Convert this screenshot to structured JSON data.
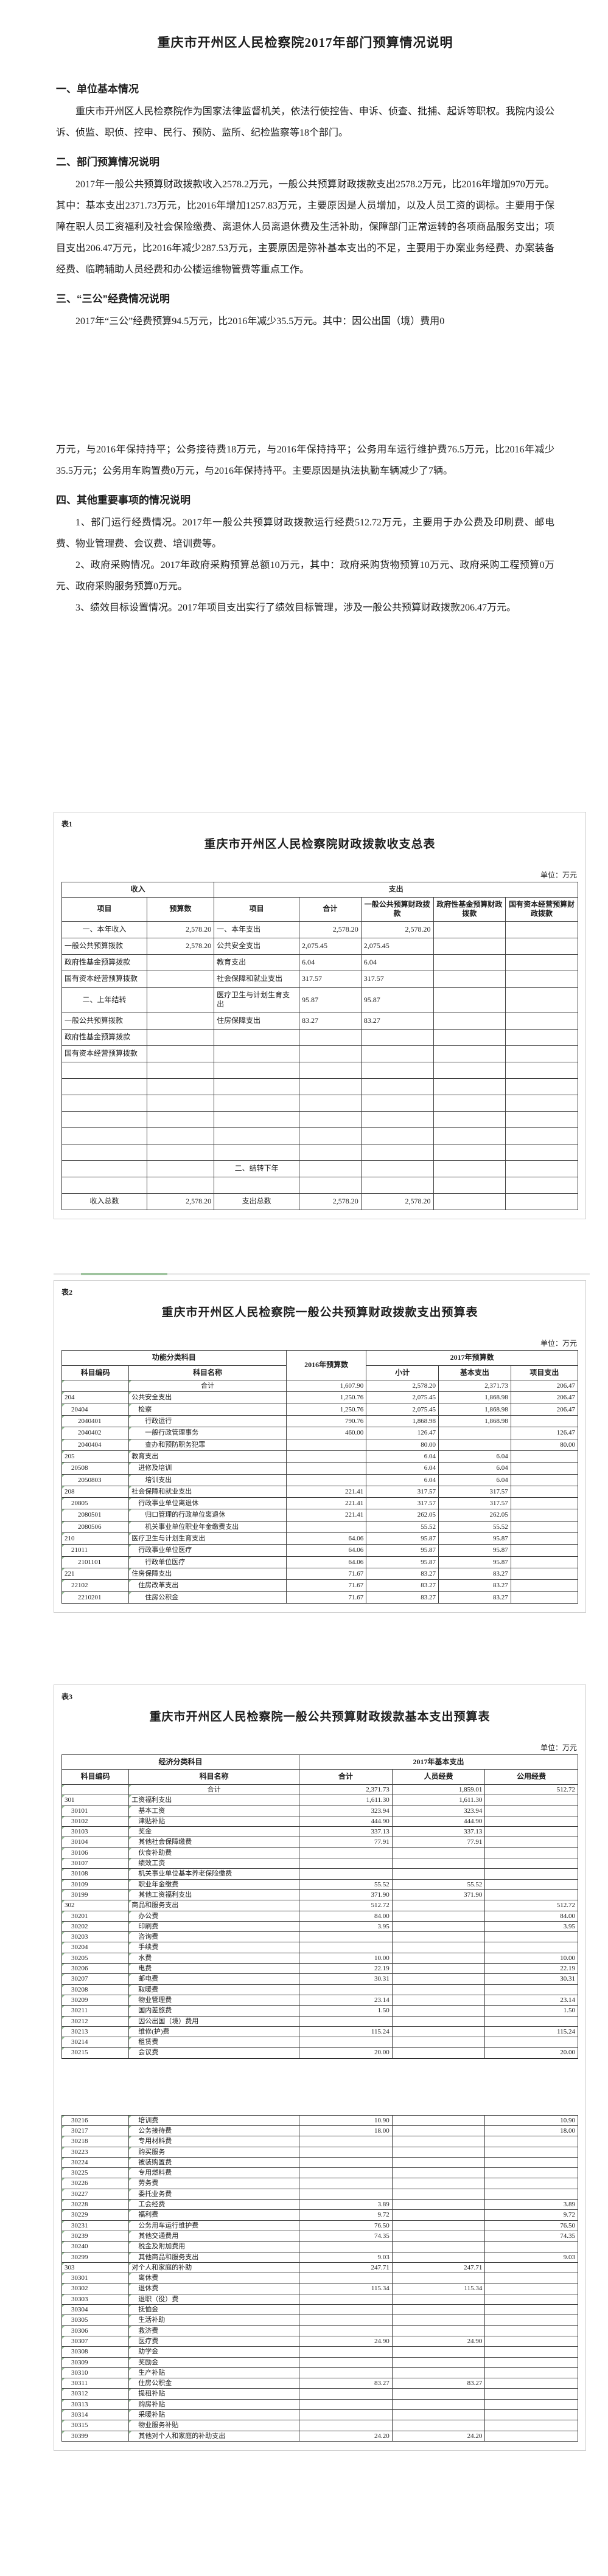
{
  "decor": {
    "divider_green": "#9fc49f",
    "divider_grey": "#ececec",
    "cell_mark_green": "#8fbc8f",
    "grid_border": "#3f3f3f"
  },
  "doc": {
    "title": "重庆市开州区人民检察院2017年部门预算情况说明",
    "s1_heading": "一、单位基本情况",
    "s1_p1": "重庆市开州区人民检察院作为国家法律监督机关，依法行使控告、申诉、侦查、批捕、起诉等职权。我院内设公诉、侦监、职侦、控申、民行、预防、监所、纪检监察等18个部门。",
    "s2_heading": "二、部门预算情况说明",
    "s2_p1": "2017年一般公共预算财政拨款收入2578.2万元，一般公共预算财政拨款支出2578.2万元，比2016年增加970万元。其中：基本支出2371.73万元，比2016年增加1257.83万元，主要原因是人员增加，以及人员工资的调标。主要用于保障在职人员工资福利及社会保险缴费、离退休人员离退休费及生活补助，保障部门正常运转的各项商品服务支出；项目支出206.47万元，比2016年减少287.53万元，主要原因是弥补基本支出的不足，主要用于办案业务经费、办案装备经费、临聘辅助人员经费和办公楼运维物管费等重点工作。",
    "s3_heading": "三、“三公”经费情况说明",
    "s3_p1": "2017年“三公”经费预算94.5万元，比2016年减少35.5万元。其中：因公出国（境）费用0",
    "s3_p2": "万元，与2016年保持持平；公务接待费18万元，与2016年保持持平；公务用车运行维护费76.5万元，比2016年减少35.5万元；公务用车购置费0万元，与2016年保持持平。主要原因是执法执勤车辆减少了7辆。",
    "s4_heading": "四、其他重要事项的情况说明",
    "s4_p1": "1、部门运行经费情况。2017年一般公共预算财政拨款运行经费512.72万元，主要用于办公费及印刷费、邮电费、物业管理费、会议费、培训费等。",
    "s4_p2": "2、政府采购情况。2017年政府采购预算总额10万元，其中：政府采购货物预算10万元、政府采购工程预算0万元、政府采购服务预算0万元。",
    "s4_p3": "3、绩效目标设置情况。2017年项目支出实行了绩效目标管理，涉及一般公共预算财政拨款206.47万元。"
  },
  "table1": {
    "tag": "表1",
    "title": "重庆市开州区人民检察院财政拨款收支总表",
    "unit": "单位：万元",
    "header": {
      "income": "收入",
      "expense": "支出",
      "item": "项目",
      "budget": "预算数",
      "total": "合计",
      "col_general": "一般公共预算财政拨款",
      "col_fund": "政府性基金预算财政拨款",
      "col_capital": "国有资本经营预算财政拨款"
    },
    "rows": [
      [
        "一、本年收入",
        "2,578.20",
        "一、本年支出",
        "2,578.20",
        "2,578.20",
        "",
        ""
      ],
      [
        "一般公共预算拨款",
        "2,578.20",
        "公共安全支出",
        "2,075.45",
        "2,075.45",
        "",
        ""
      ],
      [
        "政府性基金预算拨款",
        "",
        "教育支出",
        "6.04",
        "6.04",
        "",
        ""
      ],
      [
        "国有资本经营预算拨款",
        "",
        "社会保障和就业支出",
        "317.57",
        "317.57",
        "",
        ""
      ],
      [
        "二、上年结转",
        "",
        "医疗卫生与计划生育支出",
        "95.87",
        "95.87",
        "",
        ""
      ],
      [
        "一般公共预算拨款",
        "",
        "住房保障支出",
        "83.27",
        "83.27",
        "",
        ""
      ],
      [
        "政府性基金预算拨款",
        "",
        "",
        "",
        "",
        "",
        ""
      ],
      [
        "国有资本经营预算拨款",
        "",
        "",
        "",
        "",
        "",
        ""
      ],
      [
        "",
        "",
        "",
        "",
        "",
        "",
        ""
      ],
      [
        "",
        "",
        "",
        "",
        "",
        "",
        ""
      ],
      [
        "",
        "",
        "",
        "",
        "",
        "",
        ""
      ],
      [
        "",
        "",
        "",
        "",
        "",
        "",
        ""
      ],
      [
        "",
        "",
        "",
        "",
        "",
        "",
        ""
      ],
      [
        "",
        "",
        "",
        "",
        "",
        "",
        ""
      ],
      [
        "",
        "",
        "二、结转下年",
        "",
        "",
        "",
        ""
      ],
      [
        "",
        "",
        "",
        "",
        "",
        "",
        ""
      ],
      [
        "收入总数",
        "2,578.20",
        "支出总数",
        "2,578.20",
        "2,578.20",
        "",
        ""
      ]
    ]
  },
  "table2": {
    "tag": "表2",
    "title": "重庆市开州区人民检察院一般公共预算财政拨款支出预算表",
    "unit": "单位：万元",
    "header": {
      "func": "功能分类科目",
      "code": "科目编码",
      "name": "科目名称",
      "y2016": "2016年预算数",
      "y2017": "2017年预算数",
      "subtotal": "小计",
      "basic": "基本支出",
      "project": "项目支出"
    },
    "rows": [
      [
        "",
        "合计",
        "1,607.90",
        "2,578.20",
        "2,371.73",
        "206.47"
      ],
      [
        "204",
        "公共安全支出",
        "1,250.76",
        "2,075.45",
        "1,868.98",
        "206.47"
      ],
      [
        "　20404",
        "　检察",
        "1,250.76",
        "2,075.45",
        "1,868.98",
        "206.47"
      ],
      [
        "　　2040401",
        "　　行政运行",
        "790.76",
        "1,868.98",
        "1,868.98",
        ""
      ],
      [
        "　　2040402",
        "　　一般行政管理事务",
        "460.00",
        "126.47",
        "",
        "126.47"
      ],
      [
        "　　2040404",
        "　　查办和预防职务犯罪",
        "",
        "80.00",
        "",
        "80.00"
      ],
      [
        "205",
        "教育支出",
        "",
        "6.04",
        "6.04",
        ""
      ],
      [
        "　20508",
        "　进修及培训",
        "",
        "6.04",
        "6.04",
        ""
      ],
      [
        "　　2050803",
        "　　培训支出",
        "",
        "6.04",
        "6.04",
        ""
      ],
      [
        "208",
        "社会保障和就业支出",
        "221.41",
        "317.57",
        "317.57",
        ""
      ],
      [
        "　20805",
        "　行政事业单位离退休",
        "221.41",
        "317.57",
        "317.57",
        ""
      ],
      [
        "　　2080501",
        "　　归口管理的行政单位离退休",
        "221.41",
        "262.05",
        "262.05",
        ""
      ],
      [
        "　　2080506",
        "　　机关事业单位职业年金缴费支出",
        "",
        "55.52",
        "55.52",
        ""
      ],
      [
        "210",
        "医疗卫生与计划生育支出",
        "64.06",
        "95.87",
        "95.87",
        ""
      ],
      [
        "　21011",
        "　行政事业单位医疗",
        "64.06",
        "95.87",
        "95.87",
        ""
      ],
      [
        "　　2101101",
        "　　行政单位医疗",
        "64.06",
        "95.87",
        "95.87",
        ""
      ],
      [
        "221",
        "住房保障支出",
        "71.67",
        "83.27",
        "83.27",
        ""
      ],
      [
        "　22102",
        "　住房改革支出",
        "71.67",
        "83.27",
        "83.27",
        ""
      ],
      [
        "　　2210201",
        "　　住房公积金",
        "71.67",
        "83.27",
        "83.27",
        ""
      ]
    ]
  },
  "table3": {
    "tag": "表3",
    "title": "重庆市开州区人民检察院一般公共预算财政拨款基本支出预算表",
    "unit": "单位：万元",
    "header": {
      "econ": "经济分类科目",
      "code": "科目编码",
      "name": "科目名称",
      "y2017": "2017年基本支出",
      "total": "合计",
      "personnel": "人员经费",
      "public": "公用经费"
    },
    "rows_part1": [
      [
        "",
        "合计",
        "2,371.73",
        "1,859.01",
        "512.72"
      ],
      [
        "301",
        "工资福利支出",
        "1,611.30",
        "1,611.30",
        ""
      ],
      [
        "　30101",
        "　基本工资",
        "323.94",
        "323.94",
        ""
      ],
      [
        "　30102",
        "　津贴补贴",
        "444.90",
        "444.90",
        ""
      ],
      [
        "　30103",
        "　奖金",
        "337.13",
        "337.13",
        ""
      ],
      [
        "　30104",
        "　其他社会保障缴费",
        "77.91",
        "77.91",
        ""
      ],
      [
        "　30106",
        "　伙食补助费",
        "",
        "",
        ""
      ],
      [
        "　30107",
        "　绩效工资",
        "",
        "",
        ""
      ],
      [
        "　30108",
        "　机关事业单位基本养老保险缴费",
        "",
        "",
        ""
      ],
      [
        "　30109",
        "　职业年金缴费",
        "55.52",
        "55.52",
        ""
      ],
      [
        "　30199",
        "　其他工资福利支出",
        "371.90",
        "371.90",
        ""
      ],
      [
        "302",
        "商品和服务支出",
        "512.72",
        "",
        "512.72"
      ],
      [
        "　30201",
        "　办公费",
        "84.00",
        "",
        "84.00"
      ],
      [
        "　30202",
        "　印刷费",
        "3.95",
        "",
        "3.95"
      ],
      [
        "　30203",
        "　咨询费",
        "",
        "",
        ""
      ],
      [
        "　30204",
        "　手续费",
        "",
        "",
        ""
      ],
      [
        "　30205",
        "　水费",
        "10.00",
        "",
        "10.00"
      ],
      [
        "　30206",
        "　电费",
        "22.19",
        "",
        "22.19"
      ],
      [
        "　30207",
        "　邮电费",
        "30.31",
        "",
        "30.31"
      ],
      [
        "　30208",
        "　取暖费",
        "",
        "",
        ""
      ],
      [
        "　30209",
        "　物业管理费",
        "23.14",
        "",
        "23.14"
      ],
      [
        "　30211",
        "　国内差旅费",
        "1.50",
        "",
        "1.50"
      ],
      [
        "　30212",
        "　因公出国（境）费用",
        "",
        "",
        ""
      ],
      [
        "　30213",
        "　维修(护)费",
        "115.24",
        "",
        "115.24"
      ],
      [
        "　30214",
        "　租赁费",
        "",
        "",
        ""
      ],
      [
        "　30215",
        "　会议费",
        "20.00",
        "",
        "20.00"
      ]
    ],
    "rows_part2": [
      [
        "　30216",
        "　培训费",
        "10.90",
        "",
        "10.90"
      ],
      [
        "　30217",
        "　公务接待费",
        "18.00",
        "",
        "18.00"
      ],
      [
        "　30218",
        "　专用材料费",
        "",
        "",
        ""
      ],
      [
        "　30223",
        "　购买服务",
        "",
        "",
        ""
      ],
      [
        "　30224",
        "　被装购置费",
        "",
        "",
        ""
      ],
      [
        "　30225",
        "　专用燃料费",
        "",
        "",
        ""
      ],
      [
        "　30226",
        "　劳务费",
        "",
        "",
        ""
      ],
      [
        "　30227",
        "　委托业务费",
        "",
        "",
        ""
      ],
      [
        "　30228",
        "　工会经费",
        "3.89",
        "",
        "3.89"
      ],
      [
        "　30229",
        "　福利费",
        "9.72",
        "",
        "9.72"
      ],
      [
        "　30231",
        "　公务用车运行维护费",
        "76.50",
        "",
        "76.50"
      ],
      [
        "　30239",
        "　其他交通费用",
        "74.35",
        "",
        "74.35"
      ],
      [
        "　30240",
        "　税金及附加费用",
        "",
        "",
        ""
      ],
      [
        "　30299",
        "　其他商品和服务支出",
        "9.03",
        "",
        "9.03"
      ],
      [
        "303",
        "对个人和家庭的补助",
        "247.71",
        "247.71",
        ""
      ],
      [
        "　30301",
        "　离休费",
        "",
        "",
        ""
      ],
      [
        "　30302",
        "　退休费",
        "115.34",
        "115.34",
        ""
      ],
      [
        "　30303",
        "　退职（役）费",
        "",
        "",
        ""
      ],
      [
        "　30304",
        "　抚恤金",
        "",
        "",
        ""
      ],
      [
        "　30305",
        "　生活补助",
        "",
        "",
        ""
      ],
      [
        "　30306",
        "　救济费",
        "",
        "",
        ""
      ],
      [
        "　30307",
        "　医疗费",
        "24.90",
        "24.90",
        ""
      ],
      [
        "　30308",
        "　助学金",
        "",
        "",
        ""
      ],
      [
        "　30309",
        "　奖励金",
        "",
        "",
        ""
      ],
      [
        "　30310",
        "　生产补贴",
        "",
        "",
        ""
      ],
      [
        "　30311",
        "　住房公积金",
        "83.27",
        "83.27",
        ""
      ],
      [
        "　30312",
        "　提租补贴",
        "",
        "",
        ""
      ],
      [
        "　30313",
        "　购房补贴",
        "",
        "",
        ""
      ],
      [
        "　30314",
        "　采暖补贴",
        "",
        "",
        ""
      ],
      [
        "　30315",
        "　物业服务补贴",
        "",
        "",
        ""
      ],
      [
        "　30399",
        "　其他对个人和家庭的补助支出",
        "24.20",
        "24.20",
        ""
      ]
    ]
  }
}
